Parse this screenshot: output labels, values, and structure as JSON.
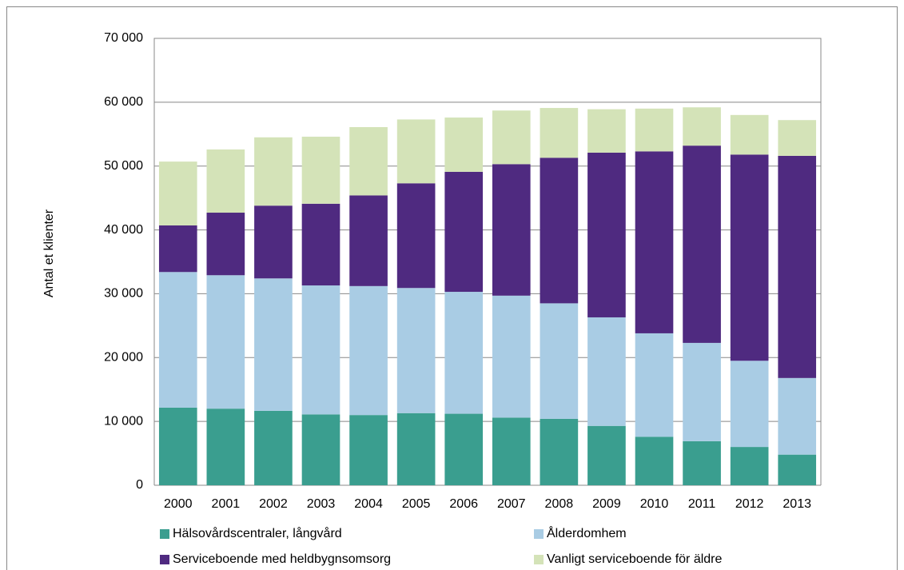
{
  "chart_data": {
    "type": "stacked_bar",
    "y_label": "Antal et klienter",
    "categories": [
      "2000",
      "2001",
      "2002",
      "2003",
      "2004",
      "2005",
      "2006",
      "2007",
      "2008",
      "2009",
      "2010",
      "2011",
      "2012",
      "2013"
    ],
    "series": [
      {
        "name": "Hälsovårdscentraler, långvård",
        "color": "#3a9e8f",
        "values": [
          12150,
          12000,
          11650,
          11100,
          11000,
          11300,
          11200,
          10600,
          10400,
          9300,
          7600,
          6900,
          6000,
          4800
        ]
      },
      {
        "name": "Ålderdomhem",
        "color": "#a9cce4",
        "values": [
          21250,
          20900,
          20750,
          20200,
          20200,
          19600,
          19100,
          19100,
          18100,
          17000,
          16200,
          15400,
          13500,
          12000
        ]
      },
      {
        "name": "Serviceboende med heldbygnsomsorg",
        "color": "#4f2a80",
        "values": [
          7300,
          9800,
          11400,
          12800,
          14200,
          16400,
          18800,
          20600,
          22800,
          25800,
          28500,
          30900,
          32300,
          34800
        ]
      },
      {
        "name": "Vanligt serviceboende för äldre",
        "color": "#d4e3b8",
        "values": [
          10000,
          9900,
          10700,
          10500,
          10700,
          10000,
          8500,
          8400,
          7800,
          6800,
          6700,
          6000,
          6200,
          5600
        ]
      }
    ],
    "ylim": [
      0,
      70000
    ],
    "yticks": [
      0,
      {
        "value": 10000,
        "label": "10 000"
      },
      {
        "value": 20000,
        "label": "20 000"
      },
      {
        "value": 30000,
        "label": "30 000"
      },
      {
        "value": 40000,
        "label": "40 000"
      },
      {
        "value": 50000,
        "label": "50 000"
      },
      {
        "value": 60000,
        "label": "60 000"
      },
      {
        "value": 70000,
        "label": "70 000"
      }
    ],
    "grid": true
  }
}
